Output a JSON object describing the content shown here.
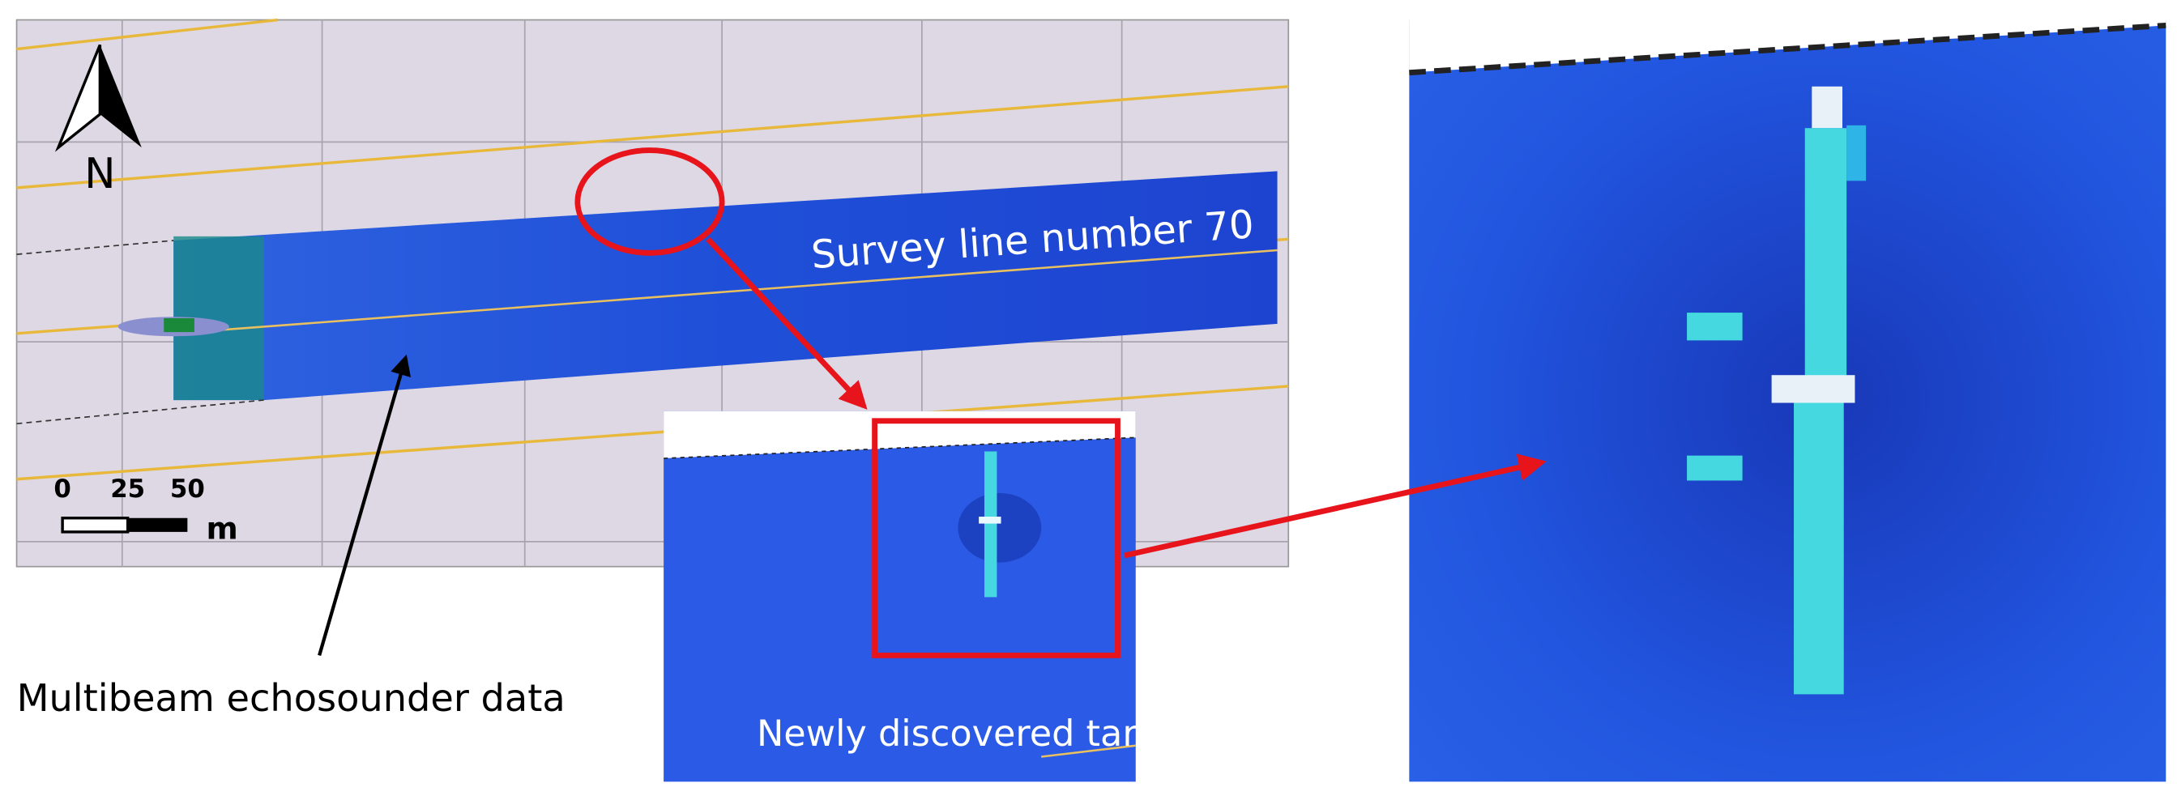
{
  "map": {
    "north_label": "N",
    "scale_bar": {
      "ticks": [
        0,
        25,
        50
      ],
      "unit": "m"
    }
  },
  "labels": {
    "survey_line": "Survey line number 70",
    "data_label": "Multibeam echosounder data",
    "target_label": "Newly discovered target"
  }
}
